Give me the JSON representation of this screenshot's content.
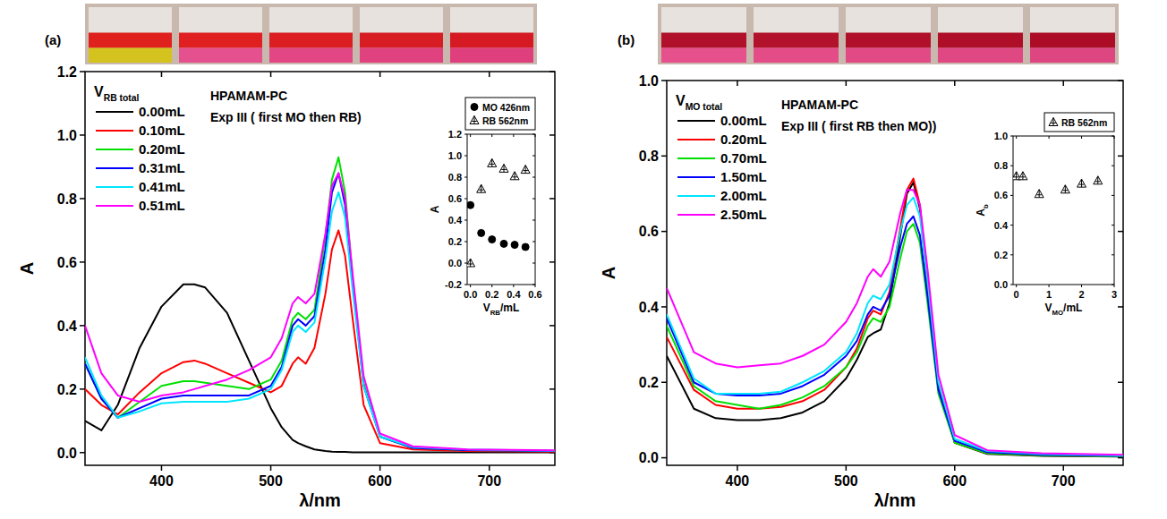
{
  "chart_data": [
    {
      "type": "line",
      "panel_label": "(a)",
      "title": [
        "HPAMAM-PC",
        "Exp III ( first MO then RB)"
      ],
      "x_label": "λ/nm",
      "y_label": "A",
      "legend_title": {
        "text": "V",
        "sub": "RB total"
      },
      "legend": "top-left",
      "grid": false,
      "xlim": [
        330,
        760
      ],
      "xticks": [
        400,
        500,
        600,
        700
      ],
      "ylim": [
        -0.04,
        1.2
      ],
      "yticks": [
        {
          "value": 0,
          "label": "0.0"
        },
        0.2,
        0.4,
        0.6,
        0.8,
        {
          "value": 1,
          "label": "1.0"
        },
        1.2
      ],
      "x": [
        330,
        345,
        360,
        380,
        400,
        420,
        430,
        440,
        460,
        480,
        500,
        510,
        520,
        525,
        532,
        540,
        550,
        556,
        562,
        568,
        575,
        585,
        600,
        630,
        680,
        760
      ],
      "series": [
        {
          "name": "0.00mL",
          "color": "#000000",
          "values": [
            0.1,
            0.07,
            0.15,
            0.33,
            0.46,
            0.53,
            0.53,
            0.52,
            0.44,
            0.29,
            0.14,
            0.08,
            0.04,
            0.03,
            0.02,
            0.01,
            0.005,
            0.003,
            0.002,
            0.002,
            0.001,
            0.001,
            0.001,
            0.001,
            0.001,
            0.001
          ]
        },
        {
          "name": "0.10mL",
          "color": "#ff0000",
          "values": [
            0.2,
            0.15,
            0.12,
            0.19,
            0.25,
            0.285,
            0.29,
            0.28,
            0.25,
            0.22,
            0.19,
            0.21,
            0.28,
            0.3,
            0.28,
            0.33,
            0.5,
            0.64,
            0.7,
            0.62,
            0.42,
            0.15,
            0.03,
            0.01,
            0.005,
            0.003
          ]
        },
        {
          "name": "0.20mL",
          "color": "#00e000",
          "values": [
            0.28,
            0.17,
            0.11,
            0.16,
            0.21,
            0.225,
            0.225,
            0.22,
            0.21,
            0.2,
            0.23,
            0.29,
            0.42,
            0.44,
            0.42,
            0.45,
            0.68,
            0.86,
            0.93,
            0.82,
            0.55,
            0.22,
            0.05,
            0.015,
            0.008,
            0.005
          ]
        },
        {
          "name": "0.31mL",
          "color": "#0000ff",
          "values": [
            0.28,
            0.17,
            0.11,
            0.14,
            0.17,
            0.18,
            0.18,
            0.18,
            0.18,
            0.18,
            0.21,
            0.27,
            0.4,
            0.42,
            0.4,
            0.43,
            0.64,
            0.82,
            0.88,
            0.78,
            0.53,
            0.21,
            0.05,
            0.015,
            0.008,
            0.005
          ]
        },
        {
          "name": "0.41mL",
          "color": "#00e5ff",
          "values": [
            0.3,
            0.18,
            0.11,
            0.13,
            0.155,
            0.16,
            0.16,
            0.16,
            0.16,
            0.17,
            0.2,
            0.26,
            0.38,
            0.4,
            0.38,
            0.41,
            0.61,
            0.76,
            0.82,
            0.74,
            0.51,
            0.21,
            0.05,
            0.018,
            0.01,
            0.006
          ]
        },
        {
          "name": "0.51mL",
          "color": "#ff00ff",
          "values": [
            0.4,
            0.25,
            0.18,
            0.16,
            0.18,
            0.19,
            0.2,
            0.21,
            0.23,
            0.26,
            0.3,
            0.36,
            0.47,
            0.49,
            0.47,
            0.5,
            0.69,
            0.84,
            0.88,
            0.8,
            0.56,
            0.24,
            0.06,
            0.02,
            0.01,
            0.007
          ]
        }
      ]
    },
    {
      "type": "scatter",
      "legend": "top",
      "grid": false,
      "x_label": {
        "text": "V",
        "sub": "RB",
        "after": "/mL"
      },
      "y_label": "A",
      "xlim": [
        -0.03,
        0.6
      ],
      "xticks": [
        {
          "value": 0,
          "label": "0.0"
        },
        0.2,
        0.4,
        0.6
      ],
      "ylim": [
        -0.2,
        1.2
      ],
      "yticks": [
        -0.2,
        {
          "value": 0,
          "label": "0.0"
        },
        0.2,
        0.4,
        0.6,
        0.8,
        {
          "value": 1,
          "label": "1.0"
        },
        1.2
      ],
      "x": [
        0,
        0.1,
        0.2,
        0.31,
        0.41,
        0.51
      ],
      "series": [
        {
          "name": "MO 426nm",
          "color": "#000000",
          "marker": "circle",
          "values": [
            0.54,
            0.28,
            0.22,
            0.18,
            0.17,
            0.15
          ]
        },
        {
          "name": "RB 562nm",
          "color": "#000000",
          "marker": "triangle",
          "values": [
            0.0,
            0.69,
            0.93,
            0.88,
            0.81,
            0.87
          ]
        }
      ]
    },
    {
      "type": "line",
      "panel_label": "(b)",
      "title": [
        "HPAMAM-PC",
        "Exp III ( first RB then MO))"
      ],
      "x_label": "λ/nm",
      "y_label": "A",
      "legend_title": {
        "text": "V",
        "sub": "MO total"
      },
      "legend": "top-left",
      "grid": false,
      "xlim": [
        335,
        755
      ],
      "xticks": [
        400,
        500,
        600,
        700
      ],
      "ylim": [
        -0.02,
        1.0
      ],
      "yticks": [
        {
          "value": 0,
          "label": "0.0"
        },
        0.2,
        0.4,
        0.6,
        0.8,
        {
          "value": 1,
          "label": "1.0"
        }
      ],
      "x": [
        335,
        360,
        380,
        400,
        420,
        440,
        460,
        480,
        500,
        510,
        520,
        525,
        532,
        540,
        550,
        556,
        562,
        568,
        575,
        585,
        600,
        630,
        680,
        755
      ],
      "series": [
        {
          "name": "0.00mL",
          "color": "#000000",
          "values": [
            0.27,
            0.13,
            0.105,
            0.1,
            0.1,
            0.105,
            0.12,
            0.15,
            0.21,
            0.26,
            0.32,
            0.33,
            0.34,
            0.41,
            0.59,
            0.7,
            0.73,
            0.66,
            0.46,
            0.18,
            0.04,
            0.01,
            0.005,
            0.003
          ]
        },
        {
          "name": "0.20mL",
          "color": "#ff0000",
          "values": [
            0.32,
            0.18,
            0.14,
            0.13,
            0.13,
            0.135,
            0.15,
            0.18,
            0.24,
            0.29,
            0.37,
            0.39,
            0.38,
            0.44,
            0.61,
            0.71,
            0.74,
            0.67,
            0.47,
            0.19,
            0.04,
            0.012,
            0.006,
            0.004
          ]
        },
        {
          "name": "0.70mL",
          "color": "#00e000",
          "values": [
            0.35,
            0.19,
            0.15,
            0.14,
            0.13,
            0.14,
            0.16,
            0.19,
            0.24,
            0.28,
            0.35,
            0.37,
            0.36,
            0.4,
            0.53,
            0.6,
            0.62,
            0.57,
            0.41,
            0.17,
            0.04,
            0.012,
            0.006,
            0.004
          ]
        },
        {
          "name": "1.50mL",
          "color": "#0000ff",
          "values": [
            0.37,
            0.2,
            0.17,
            0.165,
            0.165,
            0.17,
            0.19,
            0.22,
            0.27,
            0.31,
            0.38,
            0.4,
            0.39,
            0.43,
            0.56,
            0.62,
            0.64,
            0.59,
            0.43,
            0.18,
            0.045,
            0.015,
            0.008,
            0.005
          ]
        },
        {
          "name": "2.00mL",
          "color": "#00e5ff",
          "values": [
            0.38,
            0.21,
            0.17,
            0.17,
            0.17,
            0.175,
            0.2,
            0.23,
            0.28,
            0.33,
            0.41,
            0.43,
            0.42,
            0.46,
            0.6,
            0.67,
            0.69,
            0.64,
            0.47,
            0.2,
            0.05,
            0.018,
            0.01,
            0.006
          ]
        },
        {
          "name": "2.50mL",
          "color": "#ff00ff",
          "values": [
            0.45,
            0.28,
            0.25,
            0.24,
            0.245,
            0.25,
            0.27,
            0.3,
            0.36,
            0.41,
            0.48,
            0.5,
            0.48,
            0.52,
            0.65,
            0.71,
            0.71,
            0.67,
            0.5,
            0.22,
            0.06,
            0.02,
            0.012,
            0.008
          ]
        }
      ]
    },
    {
      "type": "scatter",
      "legend": "top",
      "grid": false,
      "x_label": {
        "text": "V",
        "sub": "MO",
        "after": "/mL"
      },
      "y_label": {
        "text": "A",
        "sub": "b"
      },
      "xlim": [
        -0.1,
        3
      ],
      "xticks": [
        0,
        1,
        2,
        3
      ],
      "ylim": [
        0,
        1.0
      ],
      "yticks": [
        {
          "value": 0,
          "label": "0.0"
        },
        0.2,
        0.4,
        0.6,
        0.8,
        {
          "value": 1,
          "label": "1.0"
        }
      ],
      "x": [
        0,
        0.2,
        0.7,
        1.5,
        2.0,
        2.5
      ],
      "series": [
        {
          "name": "RB 562nm",
          "color": "#000000",
          "marker": "triangle",
          "values": [
            0.73,
            0.73,
            0.61,
            0.64,
            0.68,
            0.7
          ]
        }
      ]
    }
  ]
}
